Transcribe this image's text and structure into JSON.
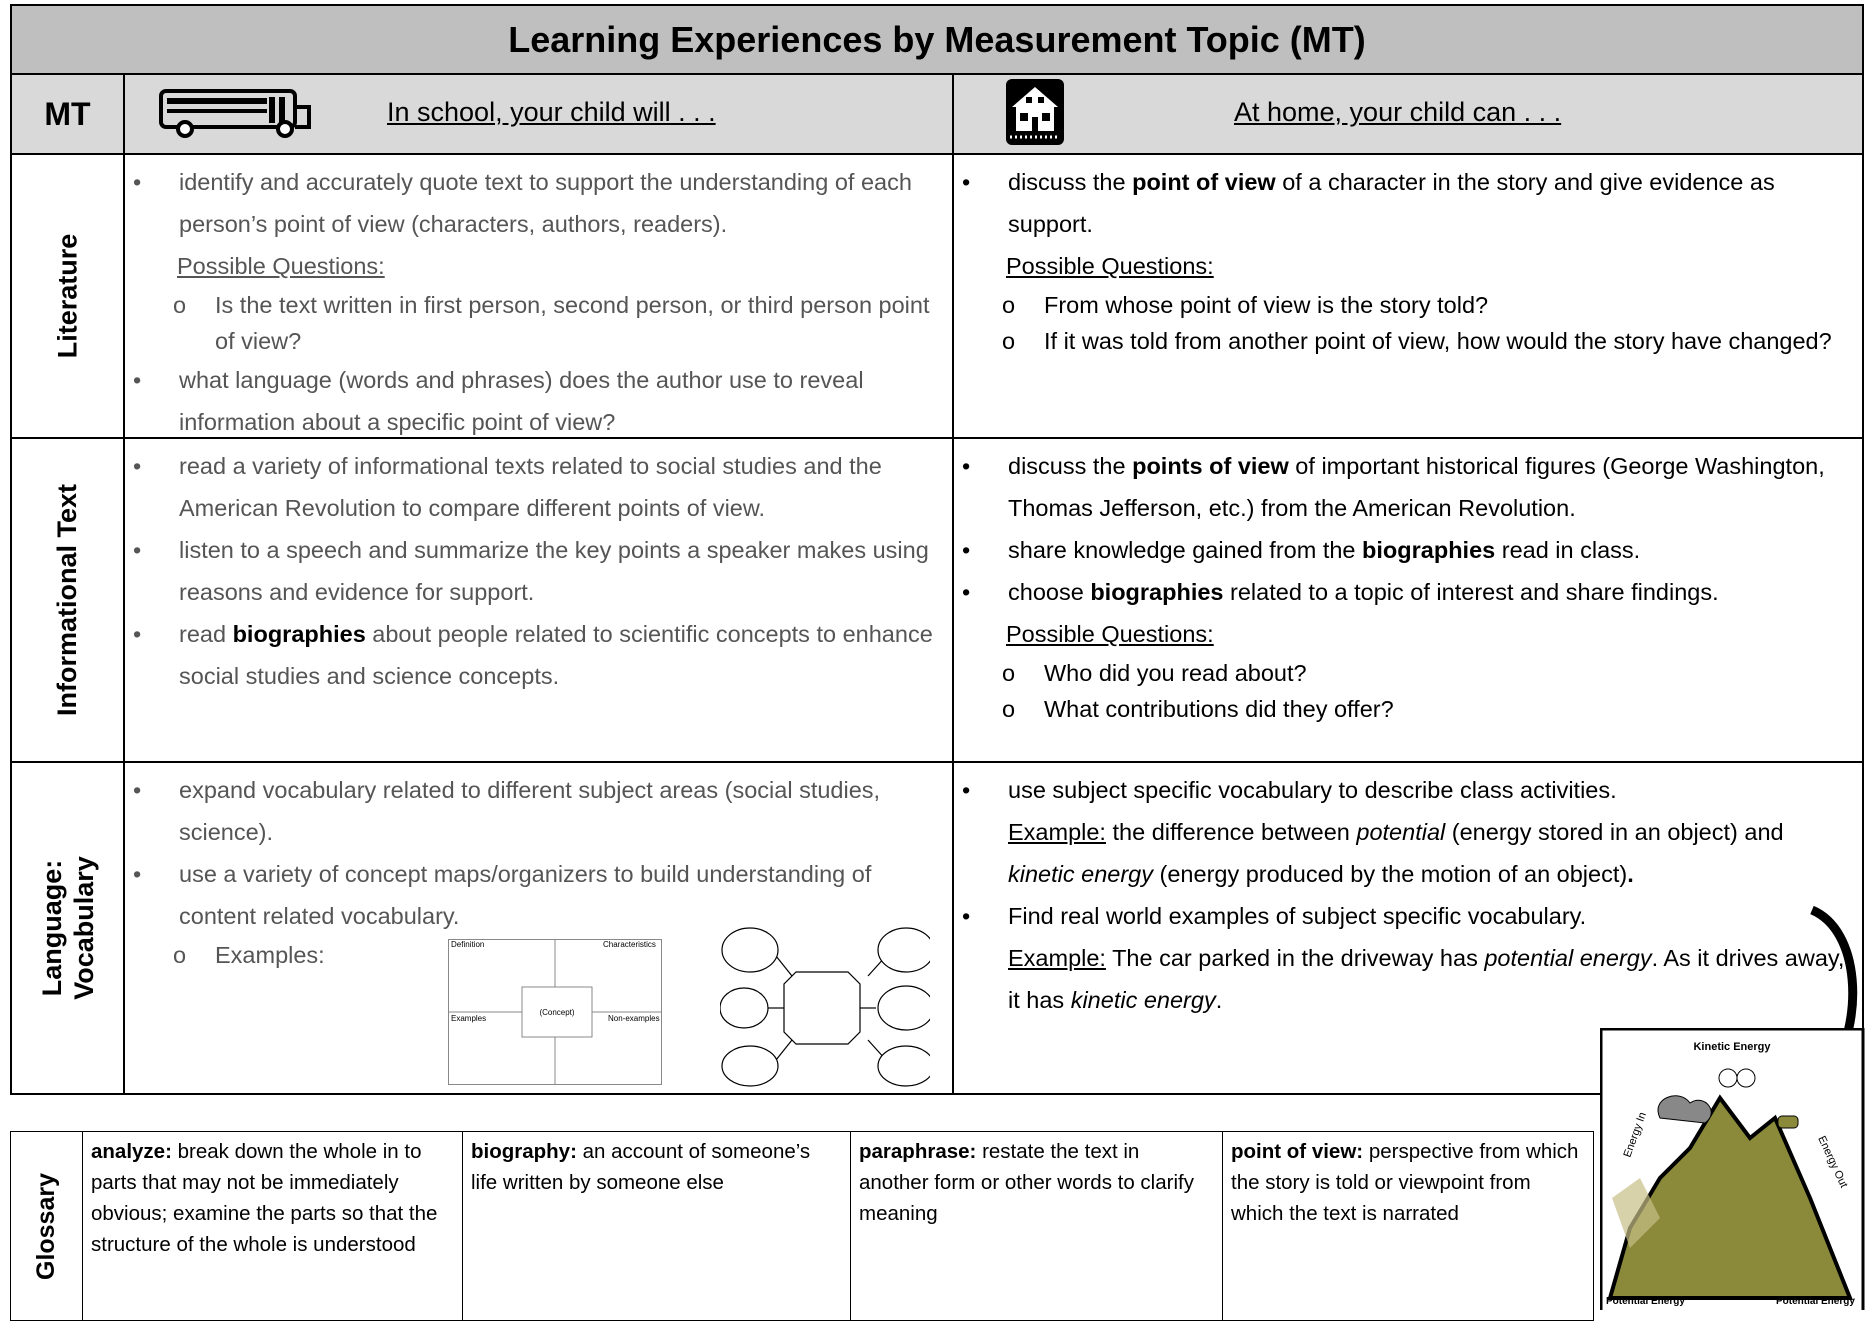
{
  "title": "Learning Experiences by  Measurement Topic (MT)",
  "header": {
    "mt": "MT",
    "school": "In school, your child will . . .",
    "home": "At home, your child can . . ."
  },
  "rows": [
    {
      "topic": "Literature",
      "school": [
        {
          "kind": "bullet",
          "runs": [
            "identify and accurately quote text to support the understanding of each person’s point of view (characters, authors, readers)."
          ]
        },
        {
          "kind": "heading",
          "runs": [
            "Possible Questions:"
          ]
        },
        {
          "kind": "sub",
          "runs": [
            "Is the text written in first person, second person, or third person point of view?"
          ]
        },
        {
          "kind": "bullet",
          "runs": [
            "what language (words and phrases) does the author use to reveal information about a specific point of view?"
          ]
        }
      ],
      "home": [
        {
          "kind": "bullet",
          "runs": [
            "discuss the ",
            {
              "b": "point of view"
            },
            " of a character in the story and give evidence as support."
          ]
        },
        {
          "kind": "heading",
          "runs": [
            "Possible Questions:"
          ]
        },
        {
          "kind": "sub",
          "runs": [
            "From whose point of view is the story told?"
          ]
        },
        {
          "kind": "sub",
          "runs": [
            "If it was told from another point of view, how would the story have changed?"
          ]
        }
      ]
    },
    {
      "topic": "Informational Text",
      "school": [
        {
          "kind": "bullet",
          "runs": [
            "read a variety of informational texts related to social studies and the American Revolution to compare different points of view."
          ]
        },
        {
          "kind": "bullet",
          "runs": [
            "listen to a speech and summarize the key points a speaker makes using reasons and evidence for support."
          ]
        },
        {
          "kind": "bullet",
          "runs": [
            "read ",
            {
              "b": "biographies"
            },
            " about people related to scientific concepts to enhance social studies and science concepts."
          ]
        }
      ],
      "home": [
        {
          "kind": "bullet",
          "runs": [
            "discuss the ",
            {
              "b": "points of view"
            },
            " of important historical figures (George Washington, Thomas Jefferson, etc.) from the American Revolution."
          ]
        },
        {
          "kind": "bullet",
          "runs": [
            "share knowledge gained from the ",
            {
              "b": "biographies"
            },
            " read in class."
          ]
        },
        {
          "kind": "bullet",
          "runs": [
            "choose ",
            {
              "b": "biographies"
            },
            " related to a topic of interest and share findings."
          ]
        },
        {
          "kind": "heading",
          "runs": [
            "Possible Questions:"
          ]
        },
        {
          "kind": "sub",
          "runs": [
            "Who did you read about?"
          ]
        },
        {
          "kind": "sub",
          "runs": [
            "What contributions did they offer?"
          ]
        }
      ]
    },
    {
      "topic": "Language: Vocabulary",
      "school": [
        {
          "kind": "bullet",
          "runs": [
            "expand vocabulary related to different subject areas (social studies, science)."
          ]
        },
        {
          "kind": "bullet",
          "runs": [
            "use a variety of concept maps/organizers to build understanding of content related vocabulary."
          ]
        },
        {
          "kind": "sub",
          "runs": [
            "Examples:"
          ]
        }
      ],
      "home": [
        {
          "kind": "bullet",
          "runs": [
            "use subject specific vocabulary to describe class activities."
          ]
        },
        {
          "kind": "para",
          "runs": [
            {
              "u": "Example:"
            },
            " the difference between ",
            {
              "i": "potential"
            },
            " (energy stored in an object) and ",
            {
              "i": "kinetic energy"
            },
            " (energy produced by the motion of an object)",
            {
              "b": "."
            }
          ]
        },
        {
          "kind": "bullet",
          "runs": [
            "Find real world examples of subject specific vocabulary."
          ]
        },
        {
          "kind": "para",
          "runs": [
            {
              "u": "Example:"
            },
            " The car parked in the driveway has ",
            {
              "i": "potential energy"
            },
            ".  As it drives away, it has ",
            {
              "i": "kinetic energy"
            },
            "."
          ]
        }
      ]
    }
  ],
  "concept_map": {
    "definition": "Definition",
    "characteristics": "Characteristics",
    "concept": "(Concept)",
    "examples": "Examples",
    "non_examples": "Non-examples"
  },
  "glossary": {
    "label": "Glossary",
    "terms": [
      {
        "term": "analyze:",
        "definition": "break down the whole in to parts that may not be immediately obvious; examine the parts so that the structure of the whole is understood"
      },
      {
        "term": "biography:",
        "definition": "an account of someone’s life written by someone else"
      },
      {
        "term": "paraphrase:",
        "definition": "restate the text in another form or other words to clarify meaning"
      },
      {
        "term": "point of view:",
        "definition": "perspective from which the story is told or viewpoint from which the text is narrated"
      }
    ]
  },
  "energy_image": {
    "top": "Kinetic Energy",
    "left": "Energy In",
    "right": "Energy Out",
    "bottom_left": "Potential Energy",
    "bottom_right": "Potential Energy"
  }
}
